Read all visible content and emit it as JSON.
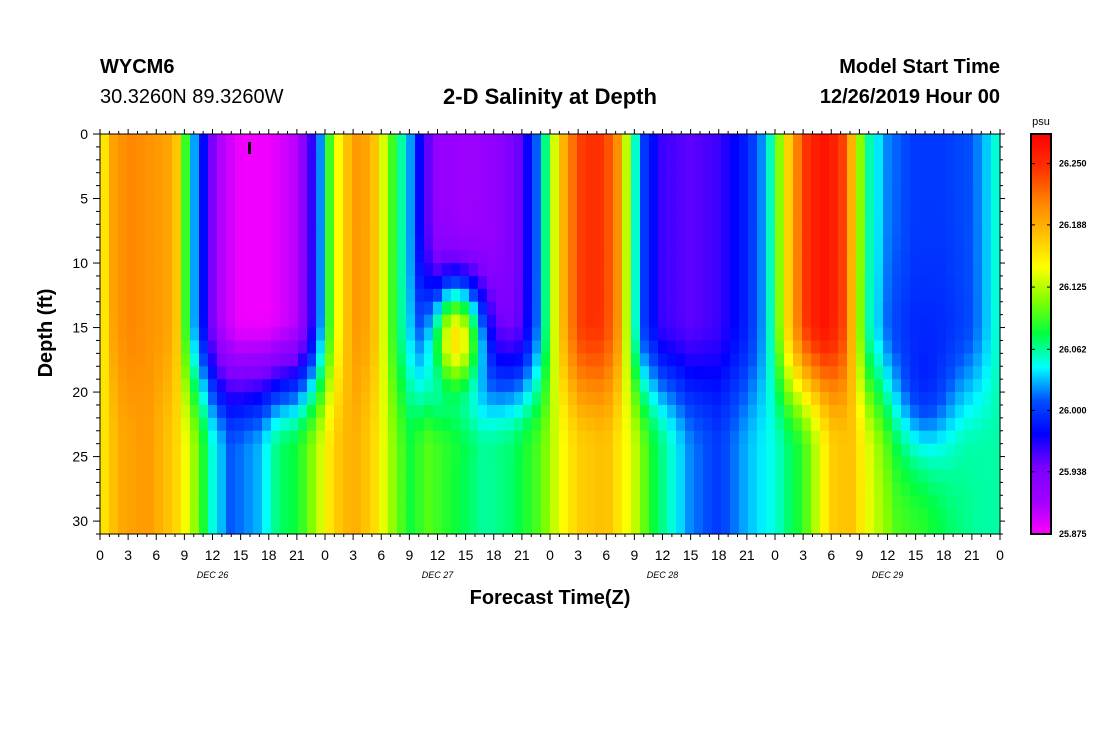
{
  "header": {
    "station": "WYCM6",
    "coordinates": "30.3260N 89.3260W",
    "title": "2-D Salinity at Depth",
    "model_start_label": "Model Start Time",
    "model_start_value": "12/26/2019 Hour 00"
  },
  "chart_data": {
    "type": "heatmap",
    "title": "2-D Salinity at Depth",
    "xlabel": "Forecast Time(Z)",
    "ylabel": "Depth (ft)",
    "x_range_hours": [
      0,
      96
    ],
    "ylim": [
      0,
      31
    ],
    "y_ticks": [
      0,
      5,
      10,
      15,
      20,
      25,
      30
    ],
    "x_tick_labels": [
      "0",
      "3",
      "6",
      "9",
      "12",
      "15",
      "18",
      "21",
      "0",
      "3",
      "6",
      "9",
      "12",
      "15",
      "18",
      "21",
      "0",
      "3",
      "6",
      "9",
      "12",
      "15",
      "18",
      "21",
      "0",
      "3",
      "6",
      "9",
      "12",
      "15",
      "18",
      "21",
      "0"
    ],
    "date_labels": [
      {
        "hour": 12,
        "label": "DEC 26"
      },
      {
        "hour": 36,
        "label": "DEC 27"
      },
      {
        "hour": 60,
        "label": "DEC 28"
      },
      {
        "hour": 84,
        "label": "DEC 29"
      }
    ],
    "colorbar": {
      "unit": "psu",
      "min": 25.875,
      "max": 26.28,
      "ticks": [
        "26.250",
        "26.188",
        "26.125",
        "26.062",
        "26.000",
        "25.938",
        "25.875"
      ],
      "tick_values": [
        26.25,
        26.188,
        26.125,
        26.062,
        26.0,
        25.938,
        25.875
      ]
    },
    "surface_profile": {
      "hours": [
        0,
        1,
        3,
        6,
        8,
        9,
        10,
        11,
        13,
        15,
        18,
        21,
        23,
        24,
        25,
        27,
        29,
        31,
        33,
        34,
        36,
        39,
        42,
        45,
        47,
        48,
        49,
        51,
        53,
        55,
        56,
        57,
        58,
        60,
        63,
        66,
        69,
        71,
        72,
        73,
        75,
        77,
        79,
        80,
        81,
        82,
        84,
        87,
        90,
        93,
        95,
        96
      ],
      "values": [
        26.13,
        26.19,
        26.21,
        26.2,
        26.19,
        26.1,
        26.03,
        25.98,
        25.9,
        25.88,
        25.88,
        25.9,
        25.98,
        26.06,
        26.13,
        26.2,
        26.19,
        26.1,
        26.03,
        25.98,
        25.92,
        25.91,
        25.92,
        25.95,
        26.03,
        26.1,
        26.17,
        26.24,
        26.25,
        26.22,
        26.14,
        26.06,
        26.0,
        25.96,
        25.95,
        25.96,
        25.99,
        26.03,
        26.08,
        26.15,
        26.24,
        26.27,
        26.25,
        26.2,
        26.12,
        26.06,
        26.02,
        26.0,
        26.0,
        26.01,
        26.04,
        26.06
      ]
    },
    "bottom_profile": {
      "hours": [
        0,
        2,
        5,
        8,
        10,
        12,
        14,
        17,
        19,
        21,
        23,
        25,
        27,
        29,
        31,
        33,
        35,
        38,
        41,
        44,
        47,
        49,
        51,
        54,
        57,
        59,
        61,
        63,
        66,
        69,
        72,
        75,
        78,
        80,
        82,
        85,
        88,
        91,
        94,
        96
      ],
      "values": [
        26.15,
        26.19,
        26.2,
        26.17,
        26.12,
        26.05,
        26.01,
        26.03,
        26.07,
        26.08,
        26.12,
        26.17,
        26.19,
        26.17,
        26.12,
        26.08,
        26.1,
        26.08,
        26.06,
        26.07,
        26.1,
        26.14,
        26.17,
        26.18,
        26.13,
        26.08,
        26.05,
        26.02,
        26.0,
        26.03,
        26.05,
        26.09,
        26.17,
        26.18,
        26.14,
        26.1,
        26.09,
        26.07,
        26.06,
        26.06
      ]
    },
    "mid_anomalies": [
      {
        "hour": 38,
        "depth": 16,
        "value": 26.16,
        "h_scale": 3.0,
        "d_scale": 4.5
      },
      {
        "hour": 88,
        "depth": 18,
        "value": 25.99,
        "h_scale": 3.5,
        "d_scale": 7.0
      }
    ]
  },
  "colors": {
    "colormap": [
      "#ff00ff",
      "#a000ff",
      "#7a00ff",
      "#0000ff",
      "#0050ff",
      "#00ffff",
      "#00ff40",
      "#80ff00",
      "#ffff00",
      "#ffc000",
      "#ff8000",
      "#ff3000",
      "#ff0000"
    ]
  }
}
